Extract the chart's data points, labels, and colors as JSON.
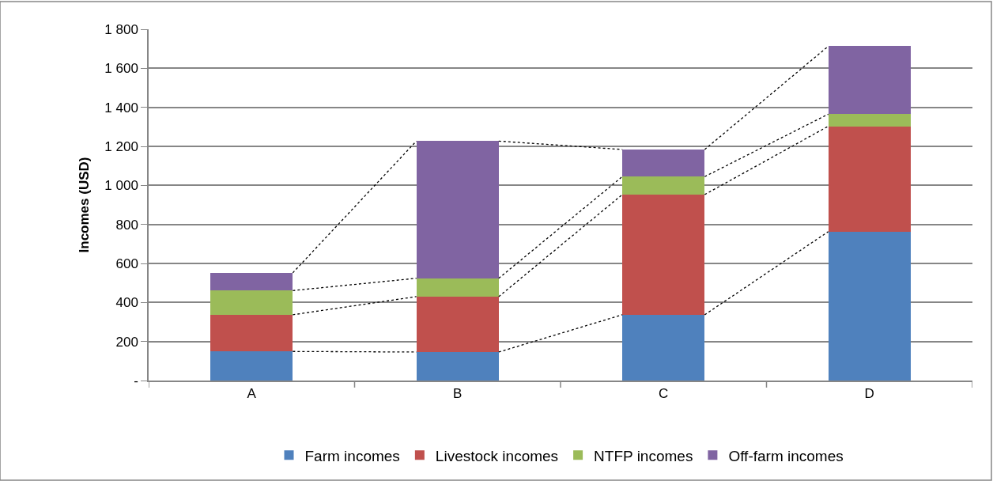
{
  "chart_data": {
    "type": "bar",
    "stacked": true,
    "ylabel": "Incomes (USD)",
    "categories": [
      "A",
      "B",
      "C",
      "D"
    ],
    "series": [
      {
        "name": "Farm incomes",
        "color": "#4f81bd",
        "values": [
          149,
          146,
          337,
          763
        ]
      },
      {
        "name": "Livestock incomes",
        "color": "#c0504d",
        "values": [
          188,
          284,
          616,
          540
        ]
      },
      {
        "name": "NTFP incomes",
        "color": "#9bbb59",
        "values": [
          124,
          94,
          92,
          62
        ]
      },
      {
        "name": "Off-farm incomes",
        "color": "#8064a2",
        "values": [
          91,
          703,
          139,
          348
        ]
      }
    ],
    "ylim": [
      0,
      1800
    ],
    "yticks": [
      {
        "value": 0,
        "label": "-"
      },
      200,
      400,
      600,
      800,
      {
        "value": 1000,
        "label": "1 000"
      },
      {
        "value": 1200,
        "label": "1 200"
      },
      {
        "value": 1400,
        "label": "1 400"
      },
      {
        "value": 1600,
        "label": "1 600"
      },
      {
        "value": 1800,
        "label": "1 800"
      }
    ],
    "grid": "y",
    "legend": "bottom"
  }
}
